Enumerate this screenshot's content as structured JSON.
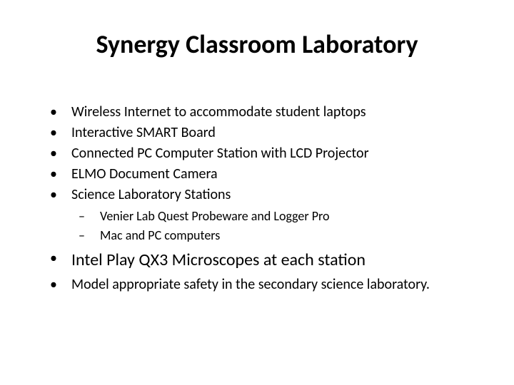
{
  "slide": {
    "title": "Synergy Classroom Laboratory",
    "bullets": {
      "item0": "Wireless Internet to accommodate student laptops",
      "item1": "Interactive SMART Board",
      "item2": "Connected PC Computer Station with LCD Projector",
      "item3": "ELMO Document Camera",
      "item4": "Science Laboratory Stations",
      "sub0": "Venier Lab Quest Probeware and Logger Pro",
      "sub1": "Mac and PC computers",
      "item5": "Intel Play QX3 Microscopes at each station",
      "item6": "Model appropriate safety in the secondary science laboratory."
    },
    "styling": {
      "background_color": "#ffffff",
      "text_color": "#000000",
      "title_fontsize": 36,
      "body_fontsize": 20,
      "sub_fontsize": 18,
      "large_body_fontsize": 24,
      "font_family": "Calibri"
    }
  }
}
